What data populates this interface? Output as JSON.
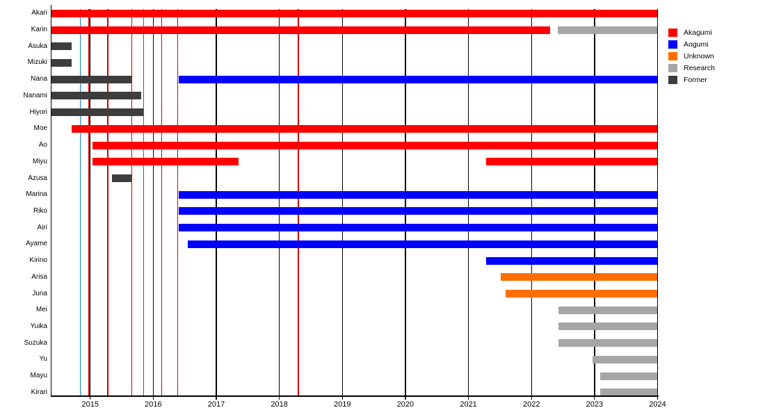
{
  "chart_data": {
    "type": "bar",
    "subtype": "horizontal-gantt-timeline",
    "title": "",
    "xlabel": "",
    "ylabel": "",
    "xlim": [
      2014.385,
      2024.0
    ],
    "x_ticks": [
      2015,
      2016,
      2017,
      2018,
      2019,
      2020,
      2021,
      2022,
      2023,
      2024
    ],
    "grid": "vertical black lines at each year tick",
    "legend_position": "outside upper right",
    "colors": {
      "akagumi": "#FF0000",
      "aogumi": "#0000FF",
      "unknown": "#FF6E00",
      "research": "#A6A6A6",
      "former": "#3D3D3D",
      "grid": "#000000",
      "axis": "#000000",
      "event_red": "#D40000",
      "event_teal": "#1283B4",
      "event_green": "#00A000"
    },
    "legend": [
      {
        "label": "Akagumi",
        "key": "akagumi"
      },
      {
        "label": "Aogumi",
        "key": "aogumi"
      },
      {
        "label": "Unknown",
        "key": "unknown"
      },
      {
        "label": "Research",
        "key": "research"
      },
      {
        "label": "Former",
        "key": "former"
      }
    ],
    "rows": [
      {
        "name": "Akari",
        "segments": [
          {
            "key": "akagumi",
            "start": 2014.39,
            "end": 2024.0
          }
        ]
      },
      {
        "name": "Karin",
        "segments": [
          {
            "key": "akagumi",
            "start": 2014.39,
            "end": 2022.3
          },
          {
            "key": "research",
            "start": 2022.42,
            "end": 2024.0
          }
        ]
      },
      {
        "name": "Asuka",
        "segments": [
          {
            "key": "former",
            "start": 2014.39,
            "end": 2014.7
          }
        ]
      },
      {
        "name": "Mizuki",
        "segments": [
          {
            "key": "former",
            "start": 2014.39,
            "end": 2014.7
          }
        ]
      },
      {
        "name": "Nana",
        "segments": [
          {
            "key": "former",
            "start": 2014.39,
            "end": 2015.65
          },
          {
            "key": "aogumi",
            "start": 2016.4,
            "end": 2024.0
          }
        ]
      },
      {
        "name": "Nanami",
        "segments": [
          {
            "key": "former",
            "start": 2014.39,
            "end": 2015.81
          }
        ]
      },
      {
        "name": "Hiyori",
        "segments": [
          {
            "key": "former",
            "start": 2014.39,
            "end": 2015.84
          }
        ]
      },
      {
        "name": "Moe",
        "segments": [
          {
            "key": "akagumi",
            "start": 2014.7,
            "end": 2024.0
          }
        ]
      },
      {
        "name": "Ao",
        "segments": [
          {
            "key": "akagumi",
            "start": 2015.04,
            "end": 2024.0
          }
        ]
      },
      {
        "name": "Miyu",
        "segments": [
          {
            "key": "akagumi",
            "start": 2015.04,
            "end": 2017.35
          },
          {
            "key": "akagumi",
            "start": 2021.28,
            "end": 2024.0
          }
        ]
      },
      {
        "name": "Azusa",
        "segments": [
          {
            "key": "former",
            "start": 2015.35,
            "end": 2015.65
          }
        ]
      },
      {
        "name": "Marina",
        "segments": [
          {
            "key": "aogumi",
            "start": 2016.4,
            "end": 2024.0
          }
        ]
      },
      {
        "name": "Riko",
        "segments": [
          {
            "key": "aogumi",
            "start": 2016.4,
            "end": 2024.0
          }
        ]
      },
      {
        "name": "Airi",
        "segments": [
          {
            "key": "aogumi",
            "start": 2016.4,
            "end": 2024.0
          }
        ]
      },
      {
        "name": "Ayame",
        "segments": [
          {
            "key": "aogumi",
            "start": 2016.55,
            "end": 2024.0
          }
        ]
      },
      {
        "name": "Kirino",
        "segments": [
          {
            "key": "aogumi",
            "start": 2021.28,
            "end": 2024.0
          }
        ]
      },
      {
        "name": "Arisa",
        "segments": [
          {
            "key": "unknown",
            "start": 2021.51,
            "end": 2024.0
          }
        ]
      },
      {
        "name": "Juna",
        "segments": [
          {
            "key": "unknown",
            "start": 2021.59,
            "end": 2024.0
          }
        ]
      },
      {
        "name": "Mei",
        "segments": [
          {
            "key": "research",
            "start": 2022.43,
            "end": 2024.0
          }
        ]
      },
      {
        "name": "Yuika",
        "segments": [
          {
            "key": "research",
            "start": 2022.43,
            "end": 2024.0
          }
        ]
      },
      {
        "name": "Suzuka",
        "segments": [
          {
            "key": "research",
            "start": 2022.43,
            "end": 2024.0
          }
        ]
      },
      {
        "name": "Yu",
        "segments": [
          {
            "key": "research",
            "start": 2022.97,
            "end": 2024.0
          }
        ]
      },
      {
        "name": "Mayu",
        "segments": [
          {
            "key": "research",
            "start": 2023.09,
            "end": 2024.0
          }
        ]
      },
      {
        "name": "Kirari",
        "segments": [
          {
            "key": "research",
            "start": 2023.09,
            "end": 2024.0
          }
        ]
      }
    ],
    "event_lines": [
      {
        "x": 2014.84,
        "key": "event_teal"
      },
      {
        "x": 2014.98,
        "key": "event_red"
      },
      {
        "x": 2015.28,
        "key": "event_red"
      },
      {
        "x": 2015.66,
        "key": "event_red"
      },
      {
        "x": 2015.845,
        "key": "event_green"
      },
      {
        "x": 2016.13,
        "key": "event_red"
      },
      {
        "x": 2016.39,
        "key": "event_red"
      },
      {
        "x": 2018.3,
        "key": "event_red"
      }
    ]
  }
}
